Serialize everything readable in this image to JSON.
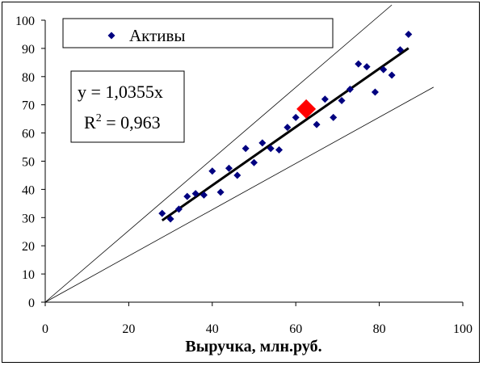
{
  "chart_data": {
    "type": "scatter",
    "title": "",
    "xlabel": "Выручка, млн.руб.",
    "ylabel": "",
    "xlim": [
      0,
      100
    ],
    "ylim": [
      0,
      100
    ],
    "xticks": [
      0,
      20,
      40,
      60,
      80,
      100
    ],
    "yticks": [
      0,
      10,
      20,
      30,
      40,
      50,
      60,
      70,
      80,
      90,
      100
    ],
    "grid": false,
    "legend": {
      "position": "top-left",
      "entries": [
        "Активы"
      ]
    },
    "series": [
      {
        "name": "Активы",
        "marker": "diamond",
        "color": "#000080",
        "points": [
          [
            28,
            31.5
          ],
          [
            30,
            29.5
          ],
          [
            32,
            33
          ],
          [
            34,
            37.5
          ],
          [
            36,
            38.5
          ],
          [
            38,
            38
          ],
          [
            40,
            46.5
          ],
          [
            42,
            39
          ],
          [
            44,
            47.5
          ],
          [
            46,
            45
          ],
          [
            48,
            54.5
          ],
          [
            50,
            49.5
          ],
          [
            52,
            56.5
          ],
          [
            54,
            54.5
          ],
          [
            56,
            54
          ],
          [
            58,
            62
          ],
          [
            60,
            65.5
          ],
          [
            63,
            67.5
          ],
          [
            65,
            63
          ],
          [
            67,
            72
          ],
          [
            69,
            65.5
          ],
          [
            71,
            71.5
          ],
          [
            73,
            75.5
          ],
          [
            75,
            84.5
          ],
          [
            77,
            83.5
          ],
          [
            79,
            74.5
          ],
          [
            81,
            82.5
          ],
          [
            83,
            80.5
          ],
          [
            85,
            89.5
          ],
          [
            87,
            95
          ]
        ]
      }
    ],
    "highlight": {
      "x": 62.5,
      "y": 68.5,
      "marker": "diamond",
      "color": "#ff0000"
    },
    "trendline": {
      "slope": 1.0355,
      "x_range": [
        28,
        87
      ],
      "color": "#000000"
    },
    "bounds": [
      {
        "slope": 1.27,
        "x_range": [
          0,
          83
        ],
        "color": "#000000"
      },
      {
        "slope": 0.82,
        "x_range": [
          0,
          93
        ],
        "color": "#000000"
      }
    ],
    "annotation": {
      "equation": "y = 1,0355x",
      "r2_label": "R",
      "r2_exp": "2",
      "r2_value": " = 0,963"
    }
  }
}
